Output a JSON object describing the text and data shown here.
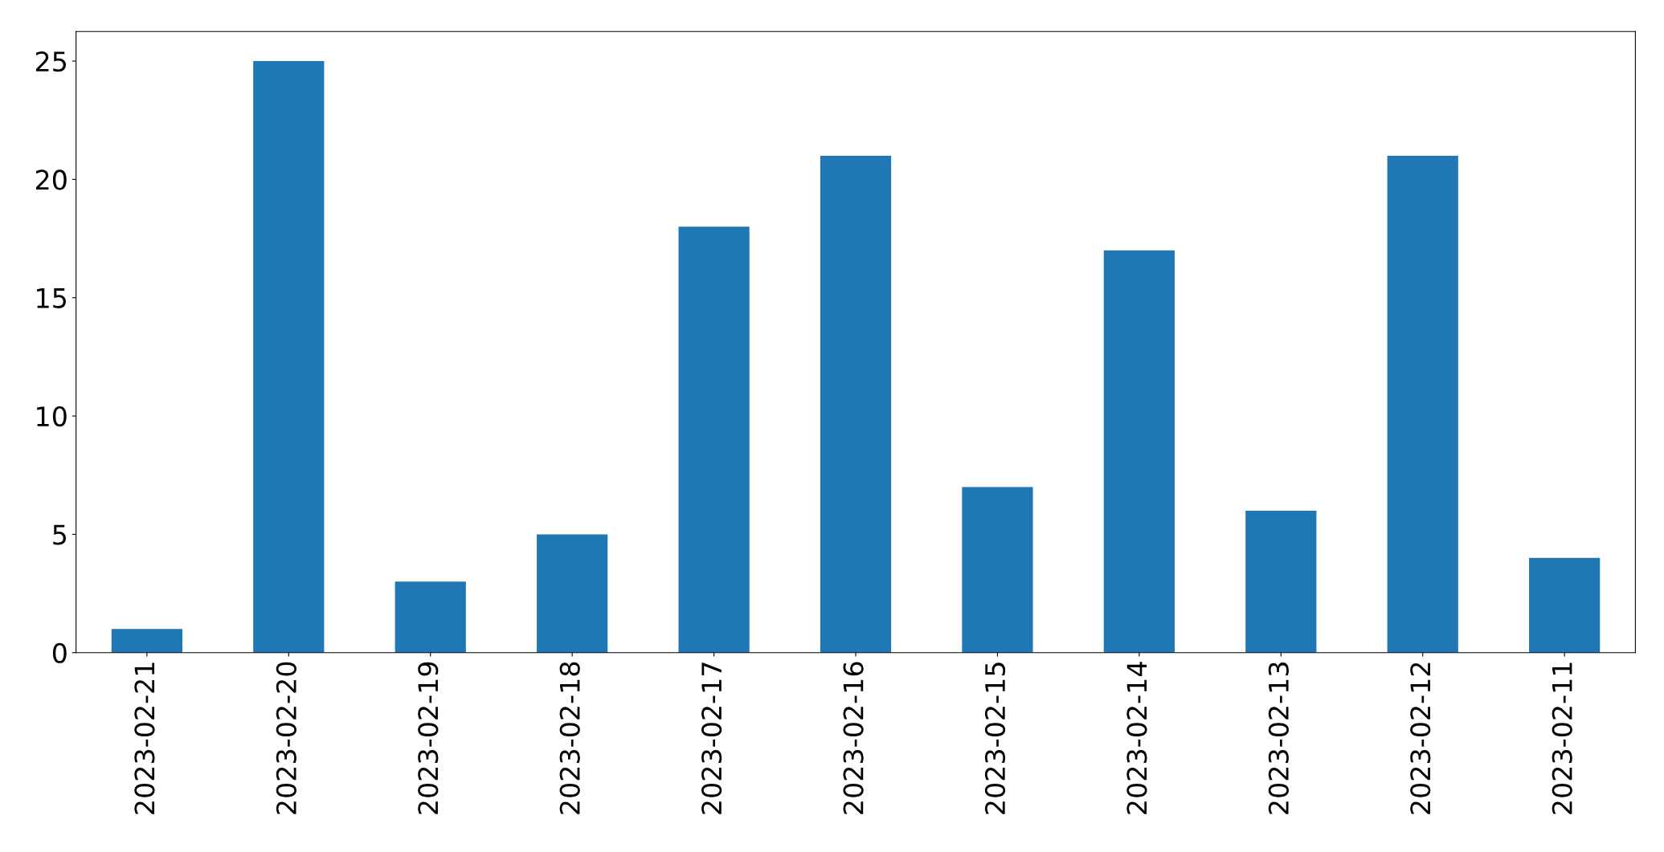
{
  "chart_data": {
    "type": "bar",
    "categories": [
      "2023-02-21",
      "2023-02-20",
      "2023-02-19",
      "2023-02-18",
      "2023-02-17",
      "2023-02-16",
      "2023-02-15",
      "2023-02-14",
      "2023-02-13",
      "2023-02-12",
      "2023-02-11"
    ],
    "values": [
      1,
      25,
      3,
      5,
      18,
      21,
      7,
      17,
      6,
      21,
      4
    ],
    "color": "#1f77b4",
    "ylim": [
      0,
      26.25
    ],
    "yticks": [
      0,
      5,
      10,
      15,
      20,
      25
    ],
    "grid": false,
    "legend": false
  }
}
